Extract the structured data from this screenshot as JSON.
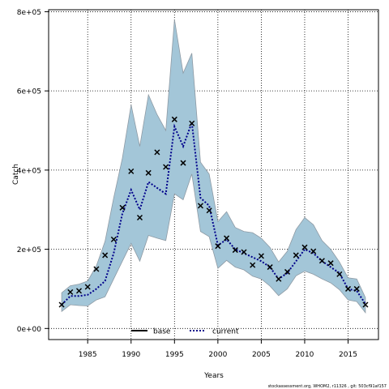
{
  "chart_data": {
    "type": "line",
    "xlabel": "Years",
    "ylabel": "Catch",
    "xlim": [
      1980.5,
      2018.5
    ],
    "ylim": [
      -28000,
      805000
    ],
    "x_ticks": [
      1985,
      1990,
      1995,
      2000,
      2005,
      2010,
      2015
    ],
    "y_ticks": [
      0,
      200000,
      400000,
      600000,
      800000
    ],
    "y_tick_labels": [
      "0e+00",
      "2e+05",
      "4e+05",
      "6e+05",
      "8e+05"
    ],
    "grid": true,
    "legend_position": "bottom-center",
    "colors": {
      "band_fill": "#a3c6d8",
      "band_stroke": "#8e9aa4",
      "current_line": "#00008b",
      "base_line": "#000000",
      "points": "#000000",
      "grid": "#000000"
    },
    "years": [
      1982,
      1983,
      1984,
      1985,
      1986,
      1987,
      1988,
      1989,
      1990,
      1991,
      1992,
      1993,
      1994,
      1995,
      1996,
      1997,
      1998,
      1999,
      2000,
      2001,
      2002,
      2003,
      2004,
      2005,
      2006,
      2007,
      2008,
      2009,
      2010,
      2011,
      2012,
      2013,
      2014,
      2015,
      2016,
      2017
    ],
    "series": [
      {
        "name": "base",
        "style": "solid",
        "values": []
      },
      {
        "name": "current",
        "style": "dotted",
        "values": [
          60000,
          82000,
          82000,
          85000,
          100000,
          120000,
          190000,
          290000,
          350000,
          300000,
          370000,
          355000,
          340000,
          510000,
          460000,
          520000,
          330000,
          310000,
          210000,
          225000,
          200000,
          190000,
          180000,
          170000,
          155000,
          125000,
          140000,
          170000,
          200000,
          190000,
          170000,
          155000,
          140000,
          100000,
          95000,
          62000
        ]
      }
    ],
    "band": {
      "upper": [
        90000,
        108000,
        112000,
        120000,
        158000,
        220000,
        330000,
        430000,
        565000,
        460000,
        590000,
        540000,
        500000,
        780000,
        645000,
        695000,
        420000,
        390000,
        270000,
        295000,
        255000,
        245000,
        242000,
        228000,
        205000,
        168000,
        195000,
        250000,
        280000,
        262000,
        222000,
        200000,
        168000,
        128000,
        125000,
        78000
      ],
      "lower": [
        43000,
        60000,
        58000,
        57000,
        72000,
        80000,
        125000,
        170000,
        215000,
        170000,
        235000,
        228000,
        222000,
        340000,
        325000,
        390000,
        245000,
        232000,
        152000,
        172000,
        155000,
        148000,
        132000,
        125000,
        107000,
        83000,
        100000,
        133000,
        145000,
        137000,
        125000,
        115000,
        98000,
        72000,
        68000,
        40000
      ]
    },
    "observations": [
      60000,
      92000,
      95000,
      105000,
      150000,
      185000,
      225000,
      305000,
      397000,
      280000,
      393000,
      445000,
      408000,
      528000,
      418000,
      518000,
      310000,
      298000,
      208000,
      228000,
      198000,
      193000,
      160000,
      183000,
      155000,
      125000,
      143000,
      185000,
      205000,
      195000,
      171000,
      165000,
      137000,
      100000,
      100000,
      60000
    ]
  },
  "footer": "stockassessment.org, WHOM2, r11326 , git: 503cf91af157"
}
